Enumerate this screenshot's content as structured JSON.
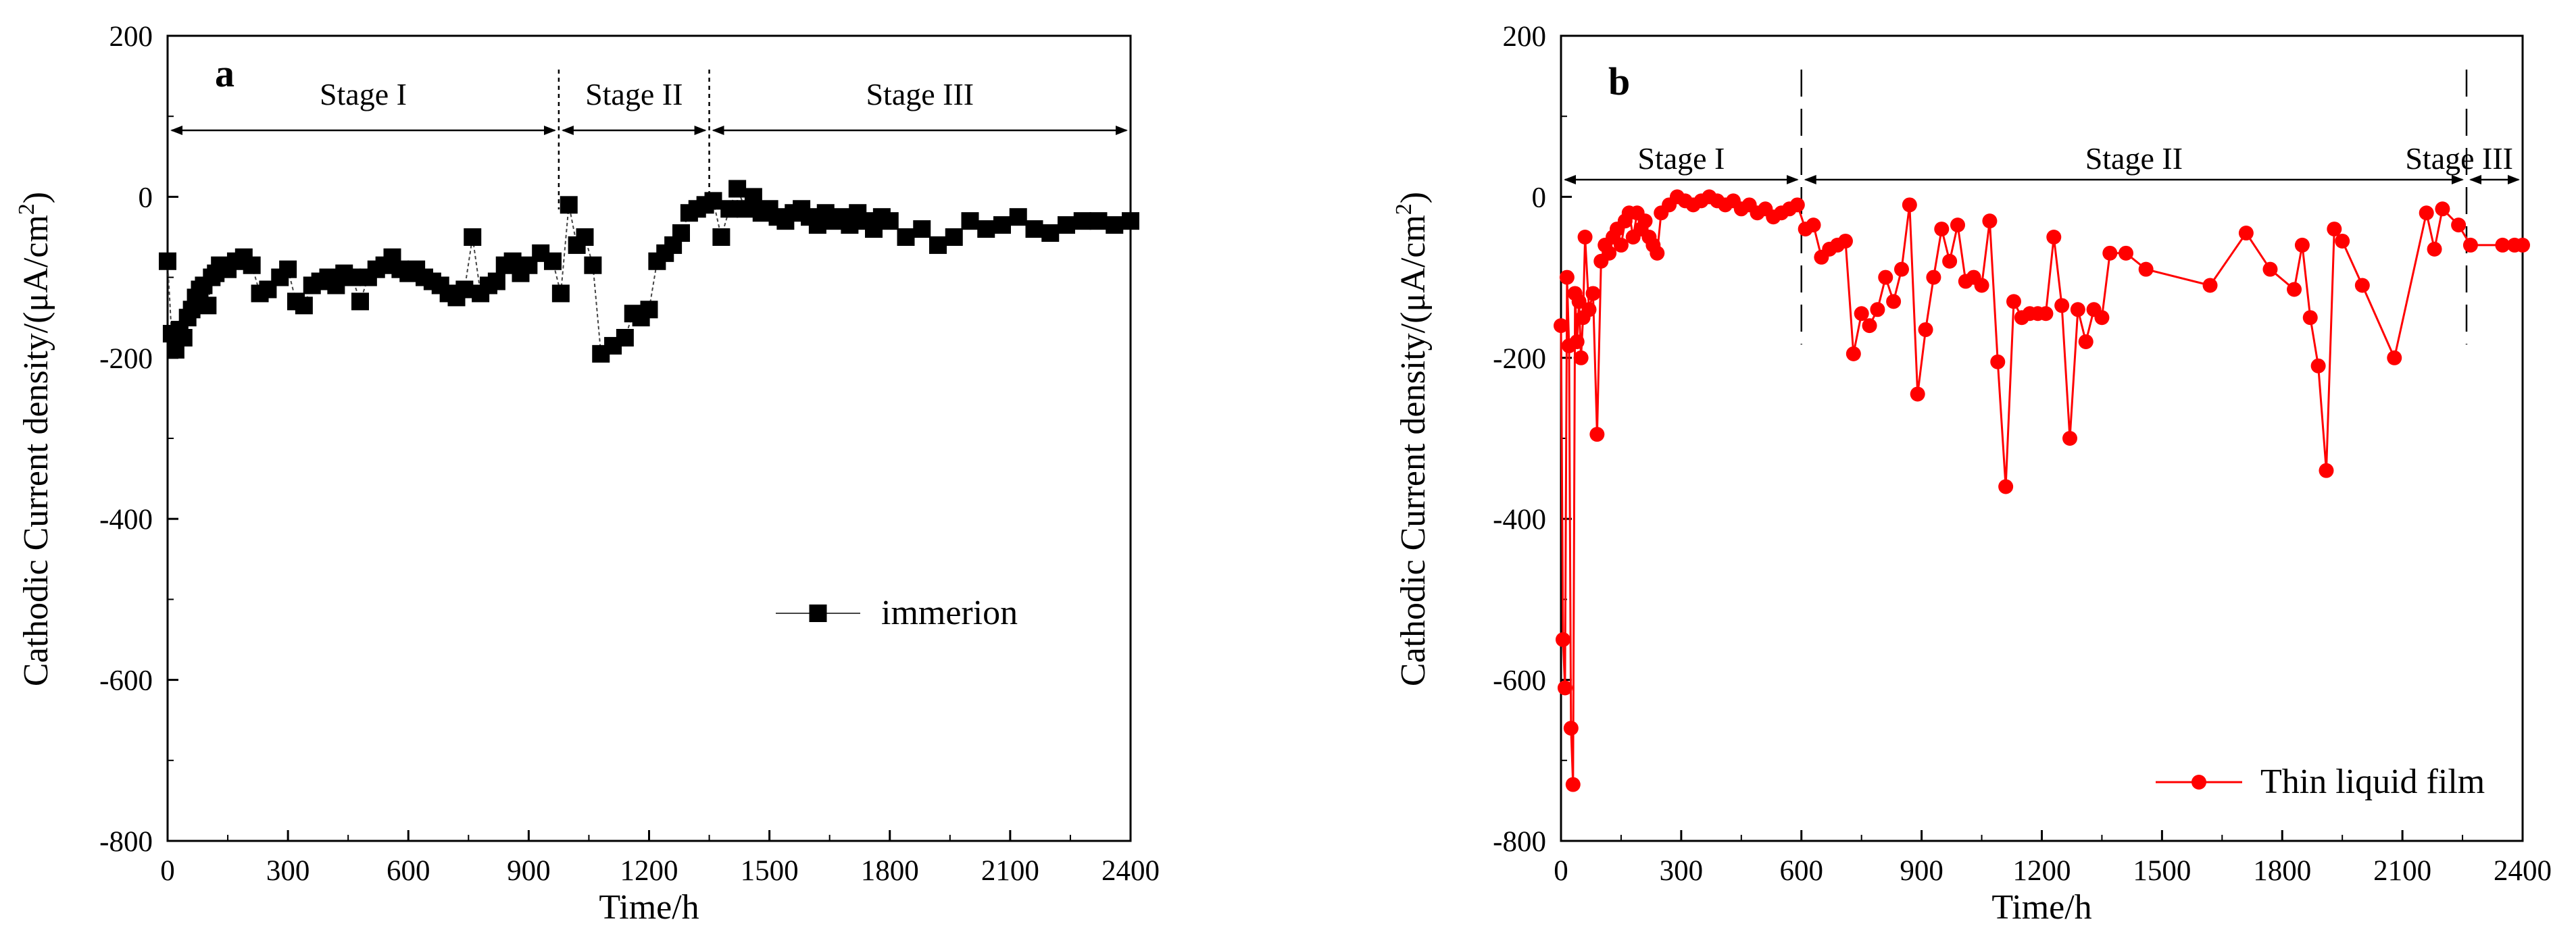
{
  "chart_data": [
    {
      "type": "line",
      "panel": "a",
      "title": "",
      "xlabel": "Time/h",
      "ylabel": "Cathodic Current density/(μA/cm",
      "ylabel_superscript": "2",
      "ylabel_suffix": ")",
      "xlim": [
        0,
        2400
      ],
      "ylim": [
        -800,
        200
      ],
      "xticks": [
        0,
        300,
        600,
        900,
        1200,
        1500,
        1800,
        2100,
        2400
      ],
      "yticks": [
        -800,
        -600,
        -400,
        -200,
        0,
        200
      ],
      "xtick_labels": [
        "0",
        "300",
        "600",
        "900",
        "1200",
        "1500",
        "1800",
        "2100",
        "2400"
      ],
      "ytick_labels": [
        "-800",
        "-600",
        "-400",
        "-200",
        "0",
        "200"
      ],
      "grid": false,
      "legend_position": "center-right",
      "stages": [
        {
          "label": "Stage I",
          "from": 0,
          "to": 975
        },
        {
          "label": "Stage II",
          "from": 975,
          "to": 1350
        },
        {
          "label": "Stage III",
          "from": 1350,
          "to": 2400
        }
      ],
      "stage_dividers": [
        975,
        1350
      ],
      "series": [
        {
          "name": "immerion",
          "color": "#000000",
          "marker": "square",
          "x": [
            0,
            10,
            20,
            30,
            40,
            50,
            60,
            70,
            80,
            90,
            100,
            110,
            120,
            130,
            150,
            170,
            190,
            210,
            230,
            250,
            280,
            300,
            320,
            340,
            360,
            380,
            400,
            420,
            440,
            460,
            480,
            500,
            520,
            540,
            560,
            580,
            600,
            620,
            640,
            660,
            680,
            700,
            720,
            740,
            760,
            780,
            800,
            820,
            840,
            860,
            880,
            900,
            930,
            960,
            980,
            1000,
            1020,
            1040,
            1060,
            1080,
            1110,
            1140,
            1160,
            1180,
            1200,
            1220,
            1240,
            1260,
            1280,
            1300,
            1320,
            1340,
            1360,
            1380,
            1400,
            1420,
            1440,
            1460,
            1480,
            1500,
            1520,
            1540,
            1560,
            1580,
            1600,
            1620,
            1640,
            1660,
            1680,
            1700,
            1720,
            1740,
            1760,
            1780,
            1800,
            1840,
            1880,
            1920,
            1960,
            2000,
            2040,
            2080,
            2120,
            2160,
            2200,
            2240,
            2280,
            2320,
            2360,
            2400
          ],
          "values": [
            -80,
            -170,
            -190,
            -165,
            -175,
            -150,
            -140,
            -125,
            -115,
            -110,
            -135,
            -100,
            -95,
            -85,
            -90,
            -80,
            -75,
            -85,
            -120,
            -115,
            -100,
            -90,
            -130,
            -135,
            -110,
            -105,
            -100,
            -110,
            -95,
            -100,
            -130,
            -100,
            -90,
            -85,
            -75,
            -90,
            -95,
            -90,
            -100,
            -105,
            -110,
            -120,
            -125,
            -115,
            -50,
            -120,
            -110,
            -105,
            -85,
            -80,
            -95,
            -85,
            -70,
            -80,
            -120,
            -10,
            -60,
            -50,
            -85,
            -195,
            -185,
            -175,
            -145,
            -150,
            -140,
            -80,
            -70,
            -60,
            -45,
            -20,
            -15,
            -10,
            -5,
            -50,
            -15,
            10,
            -15,
            0,
            -20,
            -15,
            -25,
            -30,
            -20,
            -15,
            -25,
            -35,
            -20,
            -30,
            -25,
            -35,
            -20,
            -30,
            -40,
            -25,
            -30,
            -50,
            -40,
            -60,
            -50,
            -30,
            -40,
            -35,
            -25,
            -40,
            -45,
            -35,
            -30,
            -30,
            -35,
            -30
          ]
        }
      ]
    },
    {
      "type": "line",
      "panel": "b",
      "title": "",
      "xlabel": "Time/h",
      "ylabel": "Cathodic Current density/(μA/cm",
      "ylabel_superscript": "2",
      "ylabel_suffix": ")",
      "xlim": [
        0,
        2400
      ],
      "ylim": [
        -800,
        200
      ],
      "xticks": [
        0,
        300,
        600,
        900,
        1200,
        1500,
        1800,
        2100,
        2400
      ],
      "yticks": [
        -800,
        -600,
        -400,
        -200,
        0,
        200
      ],
      "xtick_labels": [
        "0",
        "300",
        "600",
        "900",
        "1200",
        "1500",
        "1800",
        "2100",
        "2400"
      ],
      "ytick_labels": [
        "-800",
        "-600",
        "-400",
        "-200",
        "0",
        "200"
      ],
      "grid": false,
      "legend_position": "bottom-right",
      "stages": [
        {
          "label": "Stage I",
          "from": 0,
          "to": 600
        },
        {
          "label": "Stage II",
          "from": 600,
          "to": 2260
        },
        {
          "label": "Stage III",
          "from": 2260,
          "to": 2400
        }
      ],
      "stage_dividers": [
        600,
        2260
      ],
      "series": [
        {
          "name": "Thin liquid film",
          "color": "#ff0000",
          "marker": "circle",
          "x": [
            0,
            5,
            10,
            15,
            20,
            25,
            30,
            35,
            40,
            45,
            50,
            55,
            60,
            70,
            80,
            90,
            100,
            110,
            120,
            130,
            140,
            150,
            160,
            170,
            180,
            190,
            200,
            210,
            220,
            230,
            240,
            250,
            270,
            290,
            310,
            330,
            350,
            370,
            390,
            410,
            430,
            450,
            470,
            490,
            510,
            530,
            550,
            570,
            590,
            610,
            630,
            650,
            670,
            690,
            710,
            730,
            750,
            770,
            790,
            810,
            830,
            850,
            870,
            890,
            910,
            930,
            950,
            970,
            990,
            1010,
            1030,
            1050,
            1070,
            1090,
            1110,
            1130,
            1150,
            1170,
            1190,
            1210,
            1230,
            1250,
            1270,
            1290,
            1310,
            1330,
            1350,
            1370,
            1410,
            1460,
            1620,
            1710,
            1770,
            1830,
            1850,
            1870,
            1890,
            1910,
            1930,
            1950,
            2000,
            2080,
            2160,
            2180,
            2200,
            2240,
            2270,
            2350,
            2380,
            2400
          ],
          "values": [
            -160,
            -550,
            -610,
            -100,
            -185,
            -660,
            -730,
            -120,
            -180,
            -130,
            -200,
            -150,
            -50,
            -140,
            -120,
            -295,
            -80,
            -60,
            -70,
            -50,
            -40,
            -60,
            -30,
            -20,
            -50,
            -20,
            -40,
            -30,
            -50,
            -60,
            -70,
            -20,
            -10,
            0,
            -5,
            -10,
            -5,
            0,
            -5,
            -10,
            -5,
            -15,
            -10,
            -20,
            -15,
            -25,
            -20,
            -15,
            -10,
            -40,
            -35,
            -75,
            -65,
            -60,
            -55,
            -195,
            -145,
            -160,
            -140,
            -100,
            -130,
            -90,
            -10,
            -245,
            -165,
            -100,
            -40,
            -80,
            -35,
            -105,
            -100,
            -110,
            -30,
            -205,
            -360,
            -130,
            -150,
            -145,
            -145,
            -145,
            -50,
            -135,
            -300,
            -140,
            -180,
            -140,
            -150,
            -70,
            -70,
            -90,
            -110,
            -45,
            -90,
            -115,
            -60,
            -150,
            -210,
            -340,
            -40,
            -55,
            -110,
            -200,
            -20,
            -65,
            -15,
            -35,
            -60,
            -60,
            -60,
            -60
          ]
        }
      ]
    }
  ]
}
